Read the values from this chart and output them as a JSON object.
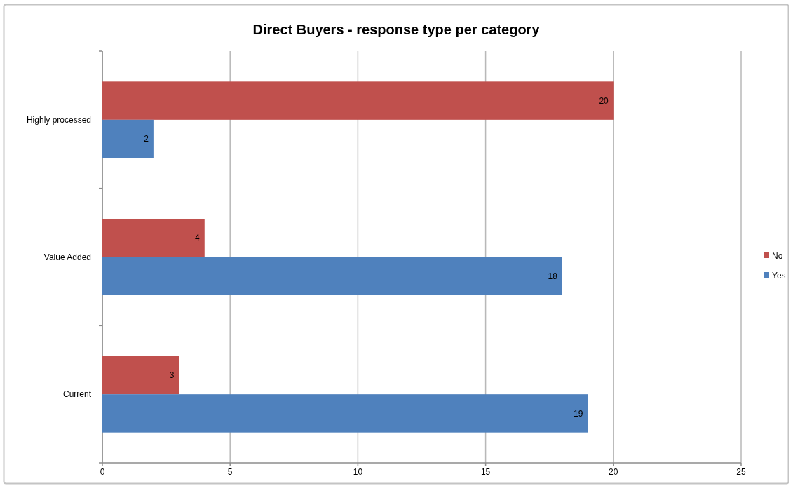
{
  "chart_data": {
    "type": "bar",
    "orientation": "horizontal",
    "title": "Direct Buyers - response type per category",
    "categories": [
      "Highly processed",
      "Value Added",
      "Current"
    ],
    "series": [
      {
        "name": "No",
        "color": "#c0504d",
        "values": [
          20,
          4,
          3
        ]
      },
      {
        "name": "Yes",
        "color": "#4f81bd",
        "values": [
          2,
          18,
          19
        ]
      }
    ],
    "xlim": [
      0,
      25
    ],
    "xticks": [
      0,
      5,
      10,
      15,
      20,
      25
    ],
    "grid": "x",
    "legend": "right",
    "data_labels": true
  }
}
